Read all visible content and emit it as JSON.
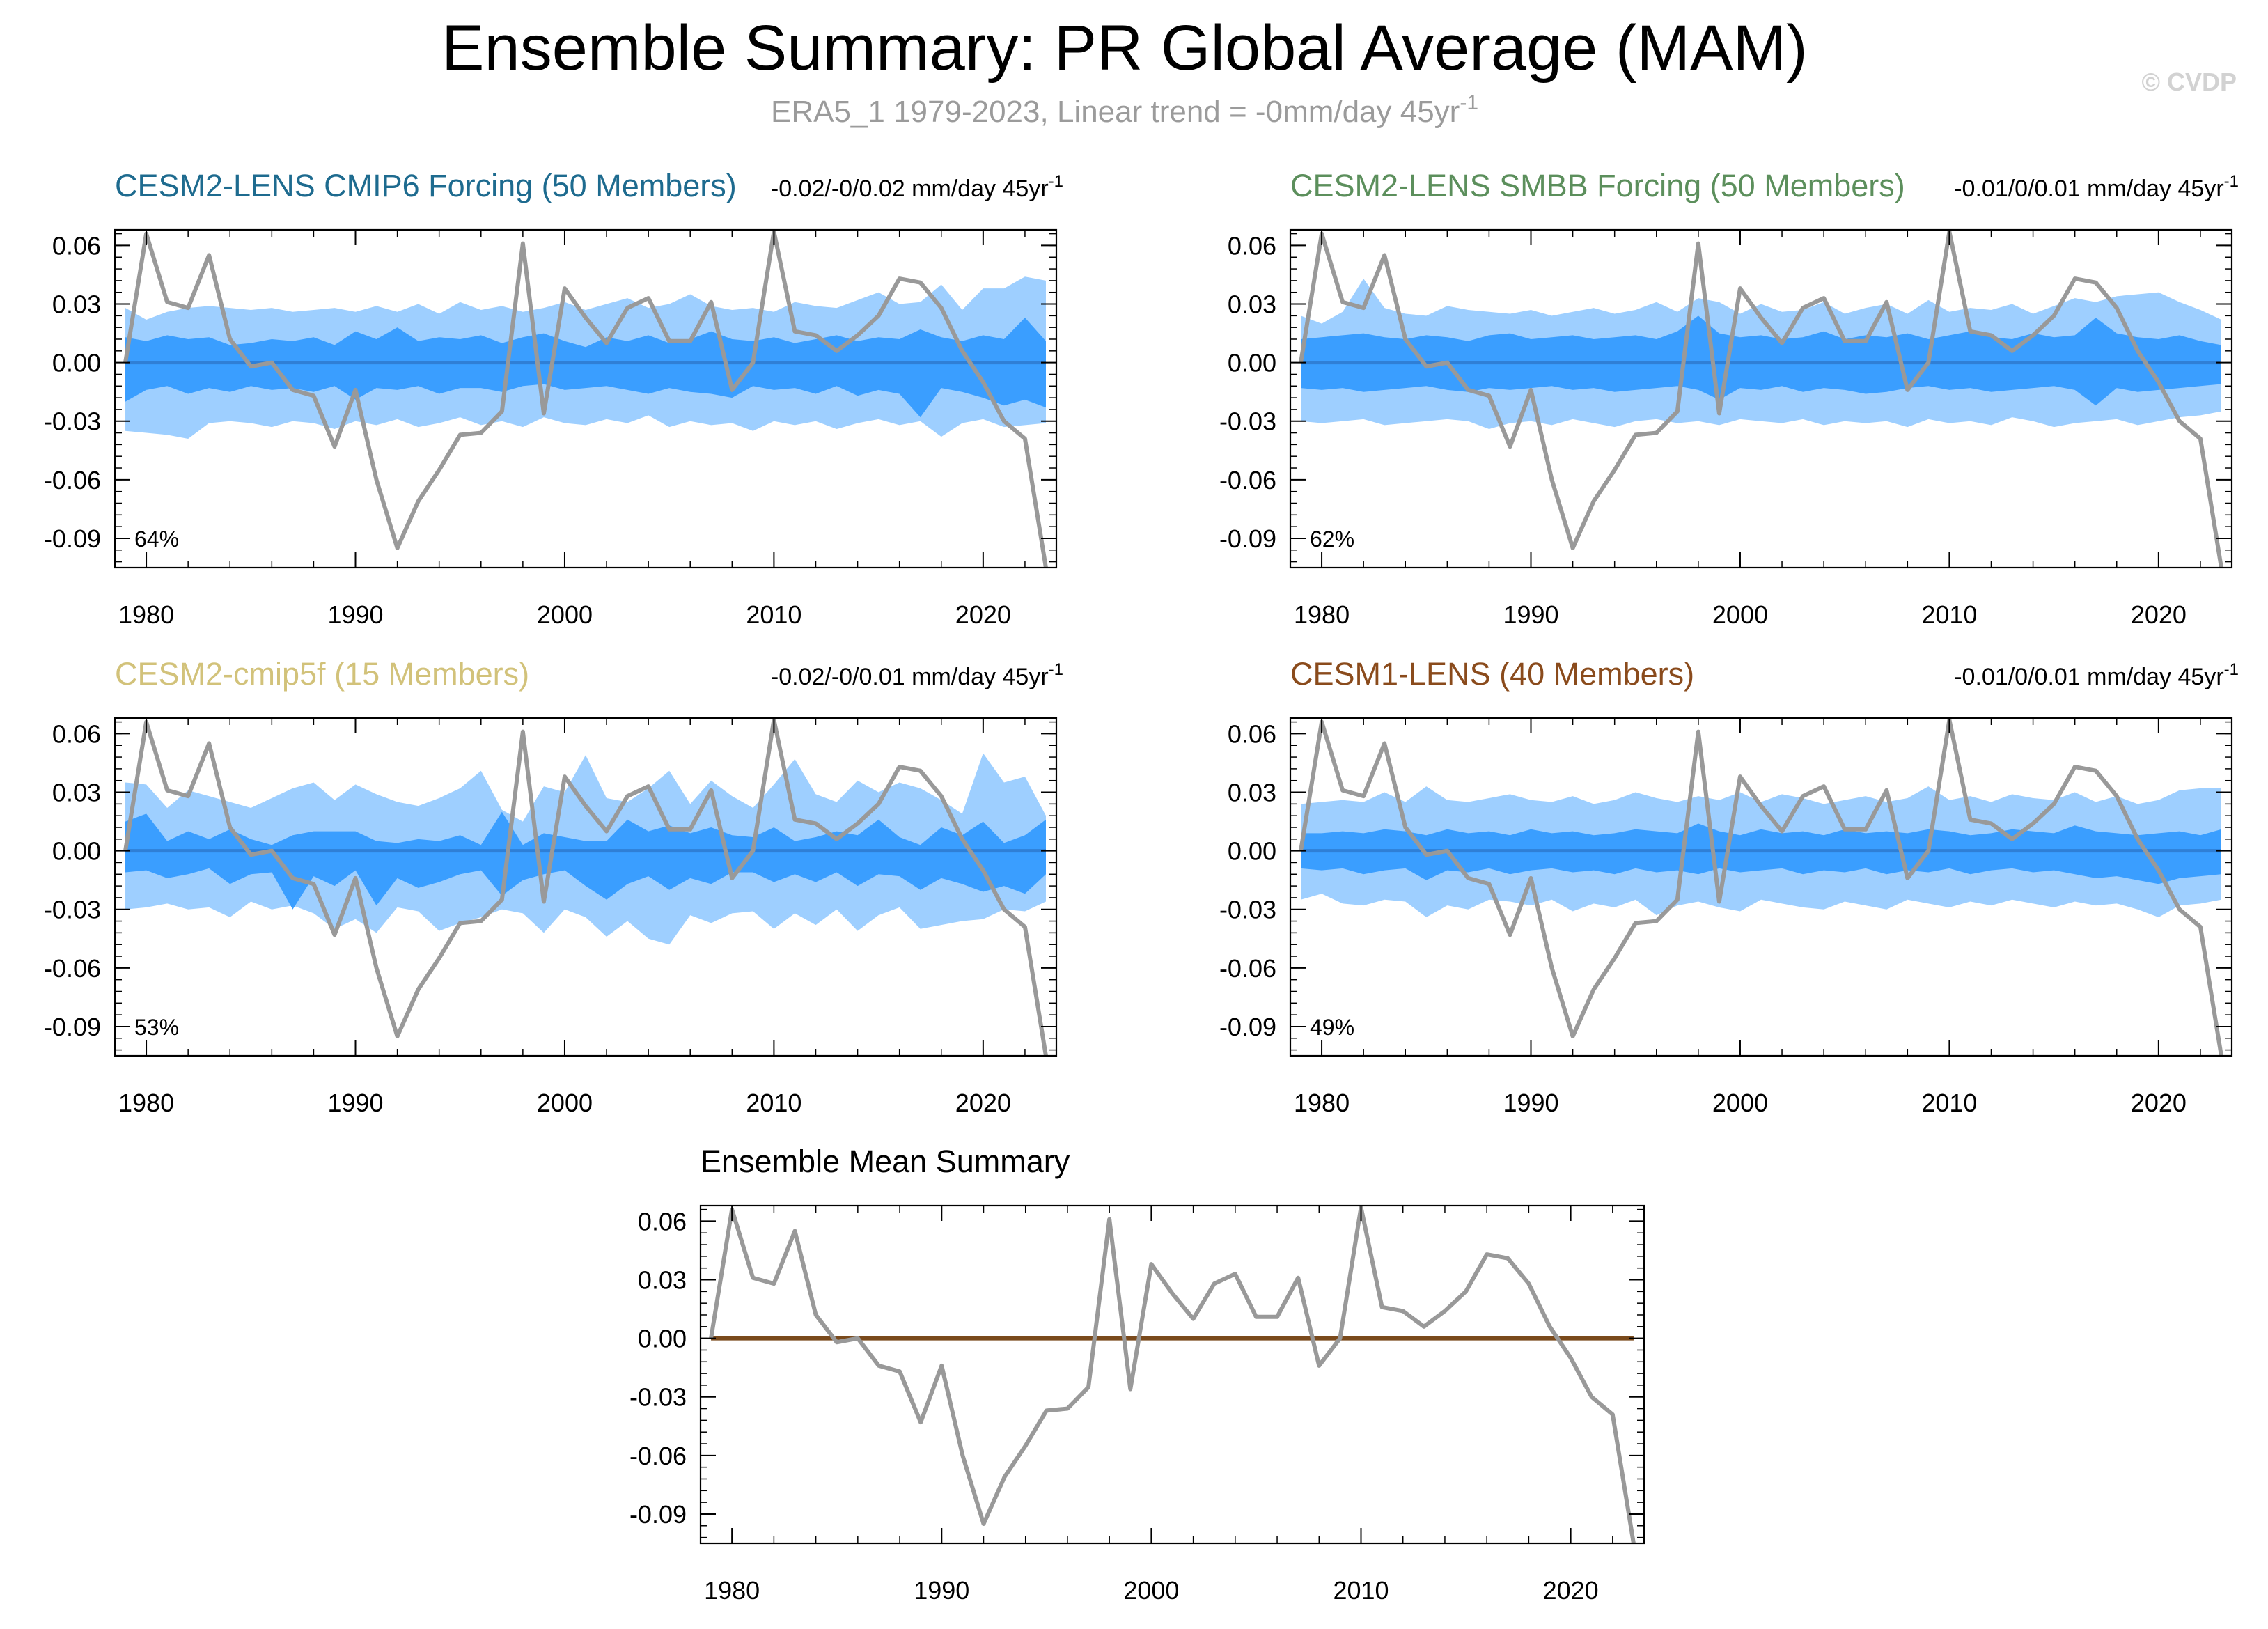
{
  "page": {
    "title": "Ensemble Summary: PR Global Average (MAM)",
    "subtitle_text": "ERA5_1 1979-2023, Linear trend = -0mm/day 45yr",
    "subtitle_sup": "-1",
    "watermark": "© CVDP"
  },
  "colors": {
    "band_outer": "#9ecfff",
    "band_inner": "#3a9eff",
    "ensemble_mean_line": "#2f7fd6",
    "observations_line": "#999999",
    "summary_mean_line": "#7a4a1c",
    "title_lens2_cmip6": "#1e6b8f",
    "title_lens2_smbb": "#5c8f5c",
    "title_cmip5f": "#d2c27a",
    "title_lens1": "#8a4b1c"
  },
  "chart_data": [
    {
      "id": "cesm2-lens-cmip6",
      "type": "area",
      "title": "CESM2-LENS CMIP6 Forcing (50 Members)",
      "title_color_key": "title_lens2_cmip6",
      "trend_text": "-0.02/-0/0.02 mm/day 45yr",
      "trend_sup": "-1",
      "percent_label": "64%",
      "x_range": [
        1978.5,
        2023.5
      ],
      "ylim": [
        -0.105,
        0.068
      ],
      "x_ticks": [
        "1980",
        "1990",
        "2000",
        "2010",
        "2020"
      ],
      "y_ticks": [
        "0.06",
        "0.03",
        "0.00",
        "-0.03",
        "-0.06",
        "-0.09"
      ],
      "band_outer_upper": [
        0.028,
        0.022,
        0.026,
        0.028,
        0.029,
        0.028,
        0.027,
        0.028,
        0.026,
        0.027,
        0.028,
        0.026,
        0.029,
        0.026,
        0.03,
        0.025,
        0.031,
        0.027,
        0.029,
        0.026,
        0.028,
        0.031,
        0.027,
        0.03,
        0.033,
        0.028,
        0.03,
        0.035,
        0.029,
        0.027,
        0.028,
        0.026,
        0.031,
        0.029,
        0.028,
        0.032,
        0.036,
        0.03,
        0.031,
        0.04,
        0.027,
        0.038,
        0.038,
        0.044,
        0.042
      ],
      "band_outer_lower": [
        -0.035,
        -0.036,
        -0.037,
        -0.039,
        -0.031,
        -0.03,
        -0.031,
        -0.033,
        -0.03,
        -0.031,
        -0.034,
        -0.03,
        -0.032,
        -0.029,
        -0.033,
        -0.031,
        -0.028,
        -0.032,
        -0.03,
        -0.033,
        -0.028,
        -0.031,
        -0.032,
        -0.029,
        -0.031,
        -0.027,
        -0.033,
        -0.03,
        -0.032,
        -0.031,
        -0.035,
        -0.03,
        -0.032,
        -0.03,
        -0.034,
        -0.031,
        -0.029,
        -0.032,
        -0.03,
        -0.038,
        -0.031,
        -0.029,
        -0.033,
        -0.032,
        -0.031
      ],
      "band_inner_upper": [
        0.013,
        0.011,
        0.014,
        0.012,
        0.013,
        0.009,
        0.01,
        0.012,
        0.011,
        0.013,
        0.009,
        0.016,
        0.012,
        0.018,
        0.011,
        0.013,
        0.012,
        0.014,
        0.01,
        0.013,
        0.015,
        0.011,
        0.008,
        0.013,
        0.011,
        0.014,
        0.01,
        0.012,
        0.016,
        0.012,
        0.011,
        0.013,
        0.01,
        0.012,
        0.014,
        0.011,
        0.013,
        0.012,
        0.017,
        0.013,
        0.011,
        0.014,
        0.012,
        0.023,
        0.011
      ],
      "band_inner_lower": [
        -0.02,
        -0.014,
        -0.012,
        -0.016,
        -0.013,
        -0.015,
        -0.012,
        -0.014,
        -0.013,
        -0.015,
        -0.012,
        -0.019,
        -0.013,
        -0.014,
        -0.012,
        -0.016,
        -0.013,
        -0.013,
        -0.015,
        -0.012,
        -0.011,
        -0.014,
        -0.013,
        -0.012,
        -0.014,
        -0.016,
        -0.013,
        -0.015,
        -0.016,
        -0.018,
        -0.012,
        -0.014,
        -0.013,
        -0.016,
        -0.012,
        -0.017,
        -0.014,
        -0.016,
        -0.028,
        -0.013,
        -0.015,
        -0.018,
        -0.022,
        -0.019,
        -0.023
      ],
      "ensemble_mean": [
        0,
        0,
        0,
        0,
        0,
        0,
        0,
        0,
        0,
        0,
        0,
        0,
        0,
        0,
        0,
        0,
        0,
        0,
        0,
        0,
        0,
        0,
        0,
        0,
        0,
        0,
        0,
        0,
        0,
        0,
        0,
        0,
        0,
        0,
        0,
        0,
        0,
        0,
        0,
        0,
        0,
        0,
        0,
        0,
        0
      ]
    },
    {
      "id": "cesm2-lens-smbb",
      "type": "area",
      "title": "CESM2-LENS SMBB Forcing (50 Members)",
      "title_color_key": "title_lens2_smbb",
      "trend_text": "-0.01/0/0.01 mm/day 45yr",
      "trend_sup": "-1",
      "percent_label": "62%",
      "x_range": [
        1978.5,
        2023.5
      ],
      "ylim": [
        -0.105,
        0.068
      ],
      "x_ticks": [
        "1980",
        "1990",
        "2000",
        "2010",
        "2020"
      ],
      "y_ticks": [
        "0.06",
        "0.03",
        "0.00",
        "-0.03",
        "-0.06",
        "-0.09"
      ],
      "band_outer_upper": [
        0.024,
        0.02,
        0.026,
        0.043,
        0.028,
        0.025,
        0.024,
        0.029,
        0.027,
        0.026,
        0.025,
        0.027,
        0.024,
        0.026,
        0.028,
        0.025,
        0.027,
        0.031,
        0.026,
        0.033,
        0.031,
        0.025,
        0.03,
        0.026,
        0.027,
        0.031,
        0.025,
        0.028,
        0.03,
        0.025,
        0.032,
        0.026,
        0.028,
        0.027,
        0.03,
        0.025,
        0.029,
        0.033,
        0.031,
        0.034,
        0.035,
        0.036,
        0.031,
        0.027,
        0.022
      ],
      "band_outer_lower": [
        -0.03,
        -0.031,
        -0.03,
        -0.029,
        -0.032,
        -0.031,
        -0.03,
        -0.029,
        -0.03,
        -0.034,
        -0.031,
        -0.03,
        -0.032,
        -0.029,
        -0.031,
        -0.033,
        -0.03,
        -0.029,
        -0.031,
        -0.03,
        -0.032,
        -0.029,
        -0.03,
        -0.031,
        -0.029,
        -0.032,
        -0.03,
        -0.031,
        -0.03,
        -0.033,
        -0.029,
        -0.031,
        -0.03,
        -0.032,
        -0.028,
        -0.03,
        -0.033,
        -0.031,
        -0.03,
        -0.029,
        -0.032,
        -0.03,
        -0.028,
        -0.027,
        -0.025
      ],
      "band_inner_upper": [
        0.012,
        0.013,
        0.014,
        0.015,
        0.013,
        0.012,
        0.014,
        0.013,
        0.011,
        0.014,
        0.015,
        0.012,
        0.013,
        0.014,
        0.012,
        0.013,
        0.014,
        0.012,
        0.016,
        0.024,
        0.015,
        0.013,
        0.014,
        0.012,
        0.013,
        0.016,
        0.012,
        0.014,
        0.013,
        0.015,
        0.012,
        0.014,
        0.016,
        0.013,
        0.012,
        0.015,
        0.013,
        0.014,
        0.023,
        0.015,
        0.013,
        0.012,
        0.014,
        0.011,
        0.009
      ],
      "band_inner_lower": [
        -0.013,
        -0.014,
        -0.013,
        -0.015,
        -0.014,
        -0.013,
        -0.012,
        -0.014,
        -0.015,
        -0.013,
        -0.014,
        -0.013,
        -0.012,
        -0.014,
        -0.013,
        -0.015,
        -0.014,
        -0.013,
        -0.012,
        -0.014,
        -0.019,
        -0.013,
        -0.014,
        -0.012,
        -0.015,
        -0.013,
        -0.014,
        -0.016,
        -0.015,
        -0.013,
        -0.012,
        -0.014,
        -0.013,
        -0.015,
        -0.014,
        -0.013,
        -0.012,
        -0.014,
        -0.022,
        -0.013,
        -0.015,
        -0.014,
        -0.013,
        -0.012,
        -0.011
      ],
      "ensemble_mean": [
        0,
        0,
        0,
        0,
        0,
        0,
        0,
        0,
        0,
        0,
        0,
        0,
        0,
        0,
        0,
        0,
        0,
        0,
        0,
        0,
        0,
        0,
        0,
        0,
        0,
        0,
        0,
        0,
        0,
        0,
        0,
        0,
        0,
        0,
        0,
        0,
        0,
        0,
        0,
        0,
        0,
        0,
        0,
        0,
        0
      ]
    },
    {
      "id": "cesm2-cmip5f",
      "type": "area",
      "title": "CESM2-cmip5f (15 Members)",
      "title_color_key": "title_cmip5f",
      "trend_text": "-0.02/-0/0.01 mm/day 45yr",
      "trend_sup": "-1",
      "percent_label": "53%",
      "x_range": [
        1978.5,
        2023.5
      ],
      "ylim": [
        -0.105,
        0.068
      ],
      "x_ticks": [
        "1980",
        "1990",
        "2000",
        "2010",
        "2020"
      ],
      "y_ticks": [
        "0.06",
        "0.03",
        "0.00",
        "-0.03",
        "-0.06",
        "-0.09"
      ],
      "band_outer_upper": [
        0.035,
        0.034,
        0.022,
        0.031,
        0.028,
        0.025,
        0.022,
        0.027,
        0.032,
        0.035,
        0.026,
        0.034,
        0.029,
        0.025,
        0.023,
        0.027,
        0.032,
        0.041,
        0.021,
        0.015,
        0.033,
        0.03,
        0.049,
        0.027,
        0.025,
        0.032,
        0.041,
        0.024,
        0.036,
        0.028,
        0.022,
        0.034,
        0.047,
        0.029,
        0.025,
        0.036,
        0.03,
        0.035,
        0.032,
        0.026,
        0.019,
        0.05,
        0.035,
        0.038,
        0.018
      ],
      "band_outer_lower": [
        -0.03,
        -0.029,
        -0.027,
        -0.03,
        -0.029,
        -0.034,
        -0.026,
        -0.03,
        -0.028,
        -0.032,
        -0.04,
        -0.035,
        -0.042,
        -0.029,
        -0.031,
        -0.041,
        -0.037,
        -0.034,
        -0.03,
        -0.032,
        -0.042,
        -0.03,
        -0.034,
        -0.044,
        -0.036,
        -0.045,
        -0.048,
        -0.033,
        -0.037,
        -0.032,
        -0.031,
        -0.04,
        -0.032,
        -0.038,
        -0.03,
        -0.041,
        -0.033,
        -0.029,
        -0.04,
        -0.038,
        -0.036,
        -0.035,
        -0.03,
        -0.031,
        -0.026
      ],
      "band_inner_upper": [
        0.015,
        0.019,
        0.005,
        0.01,
        0.006,
        0.011,
        0.006,
        0.003,
        0.008,
        0.01,
        0.01,
        0.01,
        0.005,
        0.004,
        0.006,
        0.005,
        0.008,
        0.003,
        0.02,
        0.003,
        0.009,
        0.007,
        0.005,
        0.005,
        0.016,
        0.01,
        0.013,
        0.009,
        0.012,
        0.008,
        0.007,
        0.012,
        0.005,
        0.007,
        0.01,
        0.008,
        0.016,
        0.007,
        0.003,
        0.012,
        0.008,
        0.015,
        0.004,
        0.008,
        0.016
      ],
      "band_inner_lower": [
        -0.011,
        -0.01,
        -0.014,
        -0.012,
        -0.009,
        -0.017,
        -0.012,
        -0.011,
        -0.03,
        -0.013,
        -0.018,
        -0.01,
        -0.028,
        -0.014,
        -0.019,
        -0.016,
        -0.012,
        -0.01,
        -0.023,
        -0.015,
        -0.012,
        -0.01,
        -0.018,
        -0.025,
        -0.017,
        -0.013,
        -0.02,
        -0.014,
        -0.017,
        -0.011,
        -0.011,
        -0.016,
        -0.012,
        -0.016,
        -0.011,
        -0.018,
        -0.012,
        -0.013,
        -0.02,
        -0.014,
        -0.017,
        -0.021,
        -0.018,
        -0.022,
        -0.012
      ],
      "ensemble_mean": [
        0,
        0,
        0,
        0,
        0,
        0,
        0,
        0,
        0,
        0,
        0,
        0,
        0,
        0,
        0,
        0,
        0,
        0,
        0,
        0,
        0,
        0,
        0,
        0,
        0,
        0,
        0,
        0,
        0,
        0,
        0,
        0,
        0,
        0,
        0,
        0,
        0,
        0,
        0,
        0,
        0,
        0,
        0,
        0,
        0
      ]
    },
    {
      "id": "cesm1-lens",
      "type": "area",
      "title": "CESM1-LENS (40 Members)",
      "title_color_key": "title_lens1",
      "trend_text": "-0.01/0/0.01 mm/day 45yr",
      "trend_sup": "-1",
      "percent_label": "49%",
      "x_range": [
        1978.5,
        2023.5
      ],
      "ylim": [
        -0.105,
        0.068
      ],
      "x_ticks": [
        "1980",
        "1990",
        "2000",
        "2010",
        "2020"
      ],
      "y_ticks": [
        "0.06",
        "0.03",
        "0.00",
        "-0.03",
        "-0.06",
        "-0.09"
      ],
      "band_outer_upper": [
        0.024,
        0.025,
        0.026,
        0.025,
        0.03,
        0.025,
        0.033,
        0.026,
        0.025,
        0.027,
        0.029,
        0.026,
        0.025,
        0.028,
        0.024,
        0.026,
        0.03,
        0.027,
        0.025,
        0.028,
        0.026,
        0.03,
        0.025,
        0.029,
        0.027,
        0.024,
        0.026,
        0.028,
        0.025,
        0.027,
        0.033,
        0.026,
        0.028,
        0.025,
        0.029,
        0.027,
        0.026,
        0.03,
        0.025,
        0.028,
        0.024,
        0.026,
        0.031,
        0.032,
        0.032
      ],
      "band_outer_lower": [
        -0.025,
        -0.022,
        -0.027,
        -0.028,
        -0.025,
        -0.026,
        -0.034,
        -0.028,
        -0.03,
        -0.025,
        -0.026,
        -0.028,
        -0.025,
        -0.031,
        -0.027,
        -0.029,
        -0.025,
        -0.033,
        -0.028,
        -0.026,
        -0.029,
        -0.031,
        -0.025,
        -0.027,
        -0.029,
        -0.03,
        -0.026,
        -0.028,
        -0.03,
        -0.025,
        -0.027,
        -0.029,
        -0.026,
        -0.028,
        -0.025,
        -0.027,
        -0.029,
        -0.026,
        -0.028,
        -0.027,
        -0.03,
        -0.034,
        -0.028,
        -0.027,
        -0.025
      ],
      "band_inner_upper": [
        0.009,
        0.009,
        0.01,
        0.009,
        0.011,
        0.01,
        0.008,
        0.011,
        0.009,
        0.01,
        0.008,
        0.011,
        0.009,
        0.01,
        0.008,
        0.009,
        0.011,
        0.01,
        0.009,
        0.014,
        0.01,
        0.008,
        0.011,
        0.009,
        0.01,
        0.008,
        0.011,
        0.009,
        0.01,
        0.009,
        0.011,
        0.01,
        0.008,
        0.009,
        0.011,
        0.01,
        0.009,
        0.013,
        0.01,
        0.009,
        0.008,
        0.009,
        0.01,
        0.008,
        0.011
      ],
      "band_inner_lower": [
        -0.009,
        -0.01,
        -0.009,
        -0.012,
        -0.01,
        -0.009,
        -0.015,
        -0.01,
        -0.011,
        -0.009,
        -0.012,
        -0.01,
        -0.009,
        -0.011,
        -0.01,
        -0.012,
        -0.009,
        -0.011,
        -0.01,
        -0.012,
        -0.009,
        -0.011,
        -0.01,
        -0.009,
        -0.012,
        -0.01,
        -0.011,
        -0.009,
        -0.012,
        -0.01,
        -0.011,
        -0.009,
        -0.012,
        -0.01,
        -0.009,
        -0.011,
        -0.01,
        -0.012,
        -0.014,
        -0.013,
        -0.015,
        -0.017,
        -0.014,
        -0.013,
        -0.012
      ],
      "ensemble_mean": [
        0,
        0,
        0,
        0,
        0,
        0,
        0,
        0,
        0,
        0,
        0,
        0,
        0,
        0,
        0,
        0,
        0,
        0,
        0,
        0,
        0,
        0,
        0,
        0,
        0,
        0,
        0,
        0,
        0,
        0,
        0,
        0,
        0,
        0,
        0,
        0,
        0,
        0,
        0,
        0,
        0,
        0,
        0,
        0,
        0
      ]
    },
    {
      "id": "ensemble-mean-summary",
      "type": "line",
      "title": "Ensemble Mean Summary",
      "x_range": [
        1978.5,
        2023.5
      ],
      "ylim": [
        -0.105,
        0.068
      ],
      "x_ticks": [
        "1980",
        "1990",
        "2000",
        "2010",
        "2020"
      ],
      "y_ticks": [
        "0.06",
        "0.03",
        "0.00",
        "-0.03",
        "-0.06",
        "-0.09"
      ],
      "series": [
        {
          "name": "ensemble means",
          "values": [
            0,
            0,
            0,
            0,
            0,
            0,
            0,
            0,
            0,
            0,
            0,
            0,
            0,
            0,
            0,
            0,
            0,
            0,
            0,
            0,
            0,
            0,
            0,
            0,
            0,
            0,
            0,
            0,
            0,
            0,
            0,
            0,
            0,
            0,
            0,
            0,
            0,
            0,
            0,
            0,
            0,
            0,
            0,
            0,
            0
          ]
        }
      ]
    }
  ],
  "observations": {
    "name": "ERA5_1",
    "years": [
      1979,
      1980,
      1981,
      1982,
      1983,
      1984,
      1985,
      1986,
      1987,
      1988,
      1989,
      1990,
      1991,
      1992,
      1993,
      1994,
      1995,
      1996,
      1997,
      1998,
      1999,
      2000,
      2001,
      2002,
      2003,
      2004,
      2005,
      2006,
      2007,
      2008,
      2009,
      2010,
      2011,
      2012,
      2013,
      2014,
      2015,
      2016,
      2017,
      2018,
      2019,
      2020,
      2021,
      2022,
      2023
    ],
    "values": [
      0.0,
      0.066,
      0.031,
      0.028,
      0.055,
      0.012,
      -0.002,
      0.0,
      -0.014,
      -0.017,
      -0.043,
      -0.014,
      -0.06,
      -0.095,
      -0.071,
      -0.055,
      -0.037,
      -0.036,
      -0.025,
      0.061,
      -0.026,
      0.038,
      0.023,
      0.01,
      0.028,
      0.033,
      0.011,
      0.011,
      0.031,
      -0.014,
      0.0,
      0.067,
      0.016,
      0.014,
      0.006,
      0.014,
      0.024,
      0.043,
      0.041,
      0.028,
      0.006,
      -0.01,
      -0.03,
      -0.039,
      -0.105
    ]
  }
}
